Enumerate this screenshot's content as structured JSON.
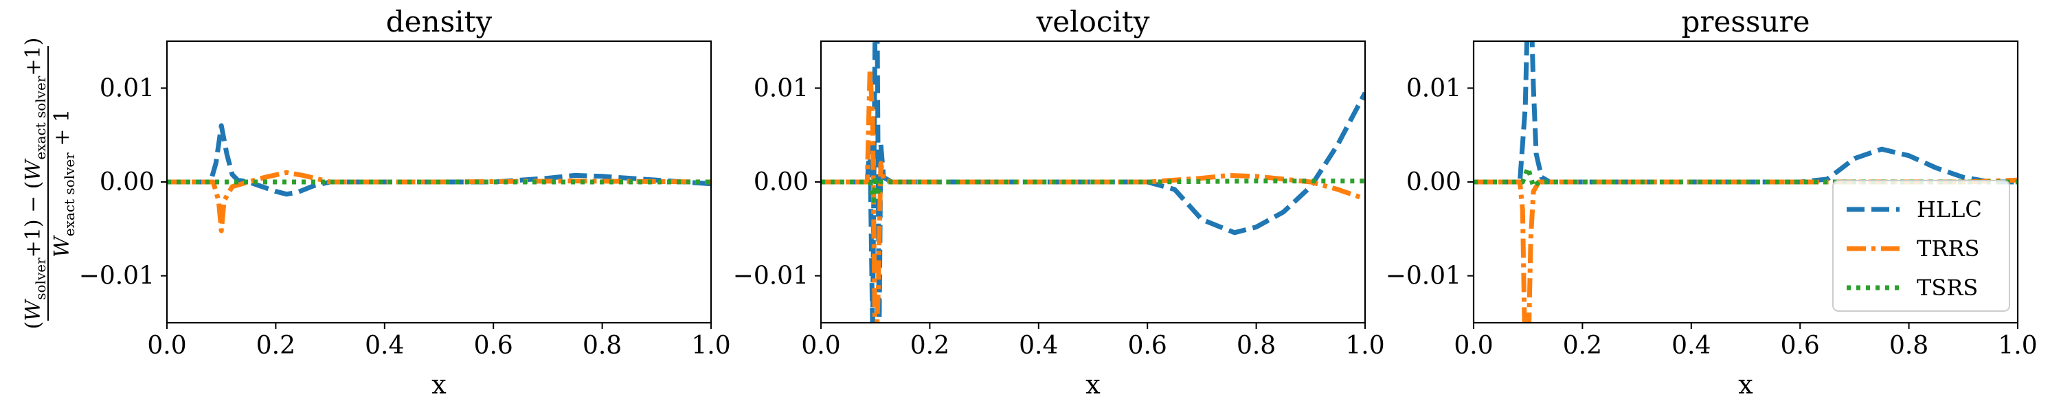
{
  "chart_data": [
    {
      "type": "line",
      "title": "density",
      "xlabel": "x",
      "xlim": [
        0.0,
        1.0
      ],
      "ylim": [
        -0.015,
        0.015
      ],
      "xticks": [
        "0.0",
        "0.2",
        "0.4",
        "0.6",
        "0.8",
        "1.0"
      ],
      "yticks": [
        "−0.01",
        "0.00",
        "0.01"
      ],
      "series": [
        {
          "name": "HLLC",
          "color": "#1f77b4",
          "style": "dashed",
          "x": [
            0.0,
            0.08,
            0.09,
            0.1,
            0.11,
            0.12,
            0.13,
            0.15,
            0.2,
            0.22,
            0.24,
            0.27,
            0.3,
            0.6,
            0.7,
            0.75,
            0.8,
            0.9,
            1.0
          ],
          "y": [
            0.0,
            0.0,
            0.002,
            0.006,
            0.003,
            0.0008,
            0.0002,
            0.0,
            -0.001,
            -0.0013,
            -0.0011,
            -0.0004,
            0.0,
            0.0,
            0.0004,
            0.0007,
            0.0006,
            0.0002,
            -0.0002
          ]
        },
        {
          "name": "TRRS",
          "color": "#ff7f0e",
          "style": "dashdot",
          "x": [
            0.0,
            0.085,
            0.095,
            0.1,
            0.105,
            0.12,
            0.15,
            0.18,
            0.22,
            0.25,
            0.3,
            0.35,
            0.5,
            0.75,
            1.0
          ],
          "y": [
            0.0,
            0.0,
            -0.002,
            -0.0052,
            -0.002,
            -0.0005,
            0.0,
            0.0005,
            0.001,
            0.0007,
            0.0,
            0.0,
            0.0,
            0.0001,
            0.0
          ]
        },
        {
          "name": "TSRS",
          "color": "#2ca02c",
          "style": "dotted",
          "x": [
            0.0,
            1.0
          ],
          "y": [
            0.0,
            0.0
          ]
        }
      ]
    },
    {
      "type": "line",
      "title": "velocity",
      "xlabel": "x",
      "xlim": [
        0.0,
        1.0
      ],
      "ylim": [
        -0.015,
        0.015
      ],
      "xticks": [
        "0.0",
        "0.2",
        "0.4",
        "0.6",
        "0.8",
        "1.0"
      ],
      "yticks": [
        "−0.01",
        "0.00",
        "0.01"
      ],
      "series": [
        {
          "name": "HLLC",
          "color": "#1f77b4",
          "style": "dashed",
          "x": [
            0.0,
            0.085,
            0.09,
            0.095,
            0.1,
            0.103,
            0.107,
            0.11,
            0.115,
            0.13,
            0.2,
            0.6,
            0.65,
            0.7,
            0.76,
            0.8,
            0.85,
            0.9,
            0.95,
            1.0
          ],
          "y": [
            0.0,
            0.0,
            0.004,
            -0.016,
            0.02,
            0.02,
            -0.016,
            0.004,
            0.0005,
            0.0,
            0.0,
            0.0,
            -0.0008,
            -0.004,
            -0.0054,
            -0.0048,
            -0.0032,
            -0.0005,
            0.004,
            0.0095
          ]
        },
        {
          "name": "TRRS",
          "color": "#ff7f0e",
          "style": "dashdot",
          "x": [
            0.0,
            0.085,
            0.09,
            0.095,
            0.1,
            0.105,
            0.11,
            0.115,
            0.13,
            0.6,
            0.7,
            0.75,
            0.8,
            0.85,
            0.9,
            0.95,
            1.0
          ],
          "y": [
            0.0,
            0.0,
            0.012,
            0.007,
            -0.02,
            -0.012,
            0.002,
            0.0002,
            0.0,
            0.0,
            0.0004,
            0.0007,
            0.0006,
            0.0003,
            0.0,
            -0.0008,
            -0.0018
          ]
        },
        {
          "name": "TSRS",
          "color": "#2ca02c",
          "style": "dotted",
          "x": [
            0.0,
            0.09,
            0.097,
            0.1,
            0.103,
            0.11,
            0.6,
            0.8,
            1.0
          ],
          "y": [
            0.0,
            0.0,
            -0.002,
            0.0006,
            -0.0015,
            0.0,
            0.0,
            0.0001,
            0.0001
          ]
        }
      ]
    },
    {
      "type": "line",
      "title": "pressure",
      "xlabel": "x",
      "xlim": [
        0.0,
        1.0
      ],
      "ylim": [
        -0.015,
        0.015
      ],
      "xticks": [
        "0.0",
        "0.2",
        "0.4",
        "0.6",
        "0.8",
        "1.0"
      ],
      "yticks": [
        "−0.01",
        "0.00",
        "0.01"
      ],
      "series": [
        {
          "name": "HLLC",
          "color": "#1f77b4",
          "style": "dashed",
          "x": [
            0.0,
            0.085,
            0.095,
            0.1,
            0.105,
            0.11,
            0.115,
            0.125,
            0.14,
            0.6,
            0.65,
            0.7,
            0.75,
            0.8,
            0.85,
            0.9,
            0.95,
            1.0
          ],
          "y": [
            0.0,
            0.0,
            0.008,
            0.02,
            0.02,
            0.01,
            0.003,
            0.0005,
            0.0,
            0.0,
            0.0003,
            0.0025,
            0.0035,
            0.0028,
            0.0015,
            0.0005,
            0.0,
            0.0
          ]
        },
        {
          "name": "TRRS",
          "color": "#ff7f0e",
          "style": "dashdot",
          "x": [
            0.0,
            0.085,
            0.09,
            0.095,
            0.1,
            0.105,
            0.11,
            0.12,
            0.6,
            0.9,
            1.0
          ],
          "y": [
            0.0,
            0.0,
            -0.003,
            -0.02,
            -0.02,
            -0.006,
            -0.001,
            0.0,
            0.0,
            0.0,
            0.0002
          ]
        },
        {
          "name": "TSRS",
          "color": "#2ca02c",
          "style": "dotted",
          "x": [
            0.0,
            0.09,
            0.1,
            0.11,
            0.12,
            1.0
          ],
          "y": [
            0.0,
            0.0,
            0.0015,
            -0.0005,
            0.0,
            0.0
          ]
        }
      ]
    }
  ],
  "ylabel": {
    "num_open": "(",
    "num_w1": "W",
    "num_sub1": "solver",
    "num_plus1": "+1) − (",
    "num_w2": "W",
    "num_sub2": "exact  solver",
    "num_close": "+1)",
    "den_w": "W",
    "den_sub": "exact  solver",
    "den_rest": " + 1"
  },
  "legend": {
    "placement": "lower-right of the pressure panel",
    "entries": [
      "HLLC",
      "TRRS",
      "TSRS"
    ]
  }
}
